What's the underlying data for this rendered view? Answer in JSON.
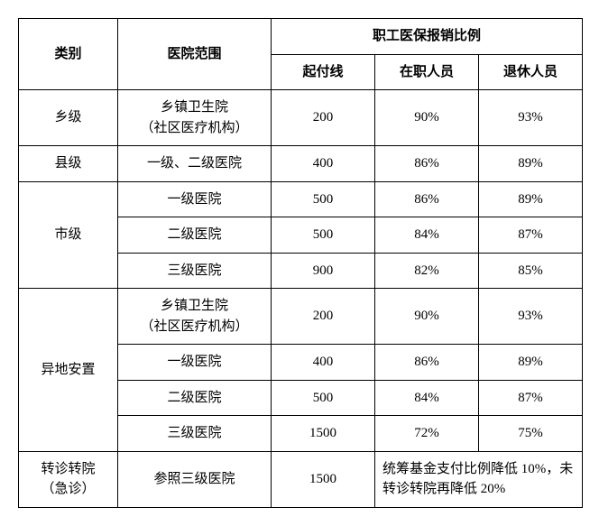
{
  "table": {
    "headers": {
      "category": "类别",
      "hospital_scope": "医院范围",
      "ratio_group": "职工医保报销比例",
      "deductible": "起付线",
      "on_job": "在职人员",
      "retired": "退休人员"
    },
    "rows": [
      {
        "category": "乡级",
        "scope": "乡镇卫生院\n（社区医疗机构）",
        "deductible": "200",
        "on_job": "90%",
        "retired": "93%"
      },
      {
        "category": "县级",
        "scope": "一级、二级医院",
        "deductible": "400",
        "on_job": "86%",
        "retired": "89%"
      },
      {
        "category": "市级",
        "scope": "一级医院",
        "deductible": "500",
        "on_job": "86%",
        "retired": "89%"
      },
      {
        "category": "",
        "scope": "二级医院",
        "deductible": "500",
        "on_job": "84%",
        "retired": "87%"
      },
      {
        "category": "",
        "scope": "三级医院",
        "deductible": "900",
        "on_job": "82%",
        "retired": "85%"
      },
      {
        "category": "异地安置",
        "scope": "乡镇卫生院\n（社区医疗机构）",
        "deductible": "200",
        "on_job": "90%",
        "retired": "93%"
      },
      {
        "category": "",
        "scope": "一级医院",
        "deductible": "400",
        "on_job": "86%",
        "retired": "89%"
      },
      {
        "category": "",
        "scope": "二级医院",
        "deductible": "500",
        "on_job": "84%",
        "retired": "87%"
      },
      {
        "category": "",
        "scope": "三级医院",
        "deductible": "1500",
        "on_job": "72%",
        "retired": "75%"
      },
      {
        "category": "转诊转院\n（急诊）",
        "scope": "参照三级医院",
        "deductible": "1500",
        "note": "统筹基金支付比例降低 10%，未转诊转院再降低 20%"
      }
    ]
  }
}
